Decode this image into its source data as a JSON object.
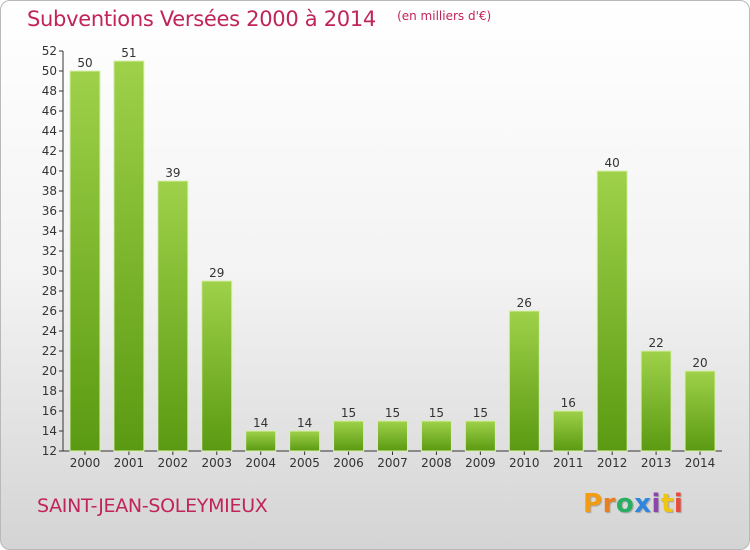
{
  "header": {
    "title": "Subventions Versées 2000 à 2014",
    "unit_note": "(en milliers d'€)"
  },
  "footer": {
    "city": "SAINT-JEAN-SOLEYMIEUX",
    "logo": {
      "letters": [
        "P",
        "r",
        "o",
        "x",
        "i",
        "t",
        "i"
      ],
      "colors": [
        "#f39c12",
        "#e67e22",
        "#27ae60",
        "#2e86de",
        "#8e44ad",
        "#f1c40f",
        "#e74c3c"
      ]
    }
  },
  "chart_data": {
    "type": "bar",
    "title": "Subventions Versées 2000 à 2014",
    "subtitle": "(en milliers d'€)",
    "categories": [
      "2000",
      "2001",
      "2002",
      "2003",
      "2004",
      "2005",
      "2006",
      "2007",
      "2008",
      "2009",
      "2010",
      "2011",
      "2012",
      "2013",
      "2014"
    ],
    "values": [
      50,
      51,
      39,
      29,
      14,
      14,
      15,
      15,
      15,
      15,
      26,
      16,
      40,
      22,
      20
    ],
    "ylim": [
      12,
      52
    ],
    "yticks": [
      12,
      14,
      16,
      18,
      20,
      22,
      24,
      26,
      28,
      30,
      32,
      34,
      36,
      38,
      40,
      42,
      44,
      46,
      48,
      50,
      52
    ],
    "grid": false,
    "bar_color_top": "#9fd14a",
    "bar_color_bottom": "#5a9a12",
    "data_labels": true
  }
}
